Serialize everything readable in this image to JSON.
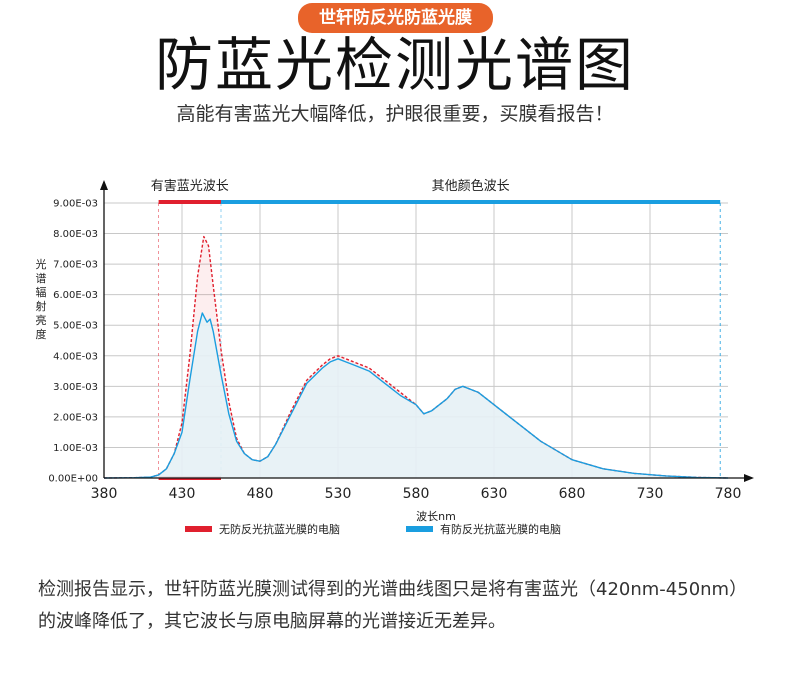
{
  "header": {
    "badge": "世轩防反光防蓝光膜",
    "title": "防蓝光检测光谱图",
    "subtitle": "高能有害蓝光大幅降低，护眼很重要，买膜看报告！"
  },
  "caption": "检测报告显示，世轩防蓝光膜测试得到的光谱曲线图只是将有害蓝光（420nm-450nm）的波峰降低了，其它波长与原电脑屏幕的光谱接近无差异。",
  "colors": {
    "accent": "#e8632a",
    "red": "#e0202e",
    "blue": "#1a9ee0",
    "fill": "#e6f2f6"
  },
  "chart_data": {
    "type": "line",
    "xlabel": "波长nm",
    "ylabel": "光谱辐射亮度",
    "xlim": [
      380,
      780
    ],
    "ylim": [
      0,
      0.009
    ],
    "x_ticks": [
      "380",
      "430",
      "480",
      "530",
      "580",
      "630",
      "680",
      "730",
      "780"
    ],
    "y_ticks": [
      "0.00E+00",
      "1.00E-03",
      "2.00E-03",
      "3.00E-03",
      "4.00E-03",
      "5.00E-03",
      "6.00E-03",
      "7.00E-03",
      "8.00E-03",
      "9.00E-03"
    ],
    "grid": true,
    "legend_position": "bottom",
    "bands": [
      {
        "label": "有害蓝光波长",
        "range": [
          415,
          455
        ],
        "color": "#e0202e"
      },
      {
        "label": "其他颜色波长",
        "range": [
          455,
          775
        ],
        "color": "#1a9ee0"
      }
    ],
    "series": [
      {
        "name": "无防反光抗蓝光膜的电脑",
        "style": "dashed",
        "color": "#e0202e",
        "x": [
          380,
          400,
          410,
          415,
          420,
          425,
          430,
          435,
          440,
          444,
          447,
          450,
          455,
          460,
          465,
          470,
          475,
          480,
          485,
          490,
          500,
          510,
          520,
          525,
          530,
          535,
          540,
          550,
          560,
          570,
          580,
          585,
          590,
          600,
          605,
          610,
          620,
          630,
          640,
          650,
          660,
          680,
          700,
          720,
          740,
          760,
          780
        ],
        "y": [
          0,
          1e-05,
          3e-05,
          0.0001,
          0.0003,
          0.0008,
          0.0018,
          0.004,
          0.0066,
          0.0079,
          0.0076,
          0.0063,
          0.0042,
          0.0025,
          0.0013,
          0.0008,
          0.0006,
          0.00055,
          0.0007,
          0.0011,
          0.0022,
          0.0032,
          0.0037,
          0.0039,
          0.004,
          0.0039,
          0.0038,
          0.0036,
          0.0032,
          0.0028,
          0.0024,
          0.0021,
          0.0022,
          0.0026,
          0.0029,
          0.003,
          0.0028,
          0.0024,
          0.002,
          0.0016,
          0.0012,
          0.0006,
          0.0003,
          0.00015,
          7e-05,
          2e-05,
          0
        ]
      },
      {
        "name": "有防反光抗蓝光膜的电脑",
        "style": "solid",
        "color": "#1a9ee0",
        "x": [
          380,
          400,
          410,
          415,
          420,
          425,
          430,
          435,
          440,
          443,
          446,
          448,
          450,
          455,
          460,
          465,
          470,
          475,
          480,
          485,
          490,
          500,
          510,
          520,
          525,
          530,
          535,
          540,
          550,
          560,
          570,
          580,
          585,
          590,
          600,
          605,
          610,
          620,
          630,
          640,
          650,
          660,
          680,
          700,
          720,
          740,
          760,
          780
        ],
        "y": [
          0,
          1e-05,
          3e-05,
          0.0001,
          0.0003,
          0.0008,
          0.0015,
          0.0032,
          0.0048,
          0.0054,
          0.0051,
          0.0052,
          0.0048,
          0.0034,
          0.0021,
          0.0012,
          0.0008,
          0.0006,
          0.00055,
          0.0007,
          0.0011,
          0.0021,
          0.0031,
          0.0036,
          0.0038,
          0.0039,
          0.0038,
          0.0037,
          0.0035,
          0.0031,
          0.0027,
          0.0024,
          0.0021,
          0.0022,
          0.0026,
          0.0029,
          0.003,
          0.0028,
          0.0024,
          0.002,
          0.0016,
          0.0012,
          0.0006,
          0.0003,
          0.00015,
          7e-05,
          2e-05,
          0
        ]
      }
    ]
  }
}
